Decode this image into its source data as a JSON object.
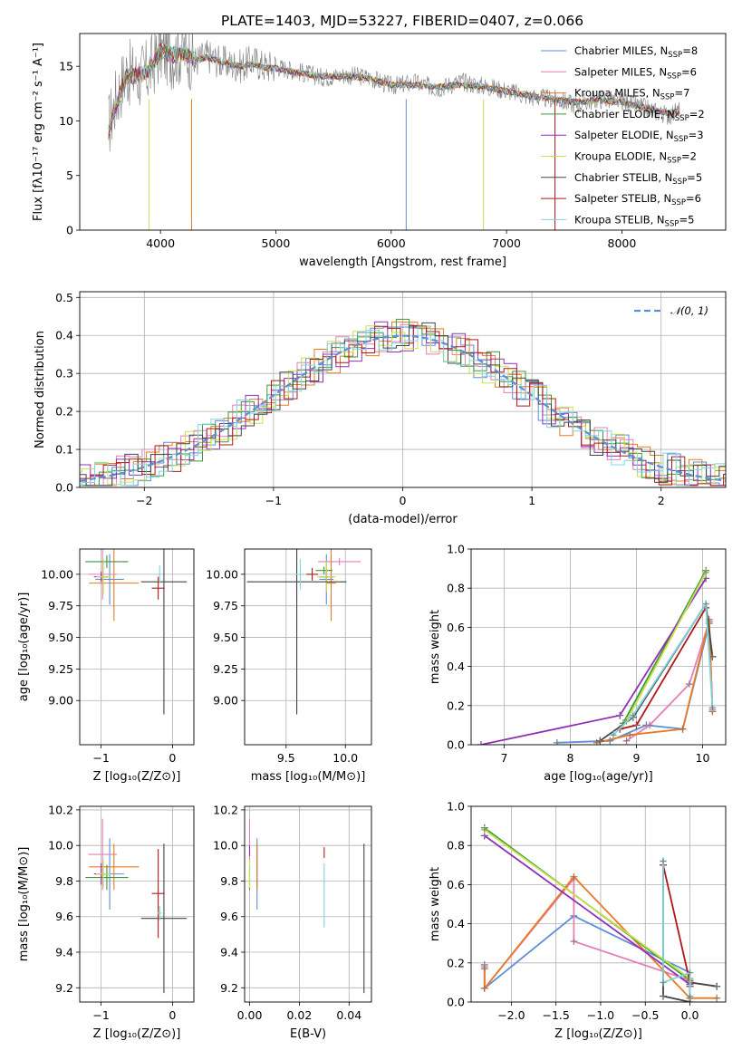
{
  "figure": {
    "title": "PLATE=1403, MJD=53227, FIBERID=0407, z=0.066"
  },
  "series_colors": {
    "Chabrier MILES": "#5b8fd8",
    "Salpeter MILES": "#e57fb8",
    "Kroupa MILES": "#e87a22",
    "Chabrier ELODIE": "#3a9a3a",
    "Salpeter ELODIE": "#9030b8",
    "Kroupa ELODIE": "#c8e04a",
    "Chabrier STELIB": "#444444",
    "Salpeter STELIB": "#b01818",
    "Kroupa STELIB": "#7fd4e0"
  },
  "chart_data": [
    {
      "id": "spectrum",
      "type": "line",
      "title": "PLATE=1403, MJD=53227, FIBERID=0407, z=0.066",
      "xlabel": "wavelength [Angstrom, rest frame]",
      "ylabel": "Flux [fλ10⁻¹⁷ erg cm⁻² s⁻¹ A⁻¹]",
      "xlim": [
        3300,
        8900
      ],
      "ylim": [
        0,
        18
      ],
      "xticks": [
        4000,
        5000,
        6000,
        7000,
        8000
      ],
      "yticks": [
        0,
        5,
        10,
        15
      ],
      "grid": false,
      "legend": "top-right",
      "data_color": "#808080",
      "data": {
        "x": [
          3550,
          3600,
          3700,
          3800,
          3900,
          4000,
          4100,
          4200,
          4300,
          4400,
          4500,
          4600,
          4700,
          4800,
          4900,
          5000,
          5200,
          5400,
          5600,
          5800,
          6000,
          6200,
          6400,
          6600,
          6800,
          7000,
          7200,
          7400,
          7600,
          7800,
          8000,
          8200,
          8400,
          8500
        ],
        "y": [
          9.5,
          11.5,
          14.5,
          14.0,
          14.5,
          16.5,
          16.0,
          16.5,
          15.5,
          16.0,
          15.5,
          15.2,
          15.0,
          15.5,
          15.0,
          15.0,
          14.5,
          14.0,
          14.2,
          14.0,
          13.2,
          13.5,
          13.0,
          13.6,
          13.2,
          12.8,
          12.2,
          12.0,
          11.5,
          12.0,
          11.8,
          11.2,
          10.5,
          11.0
        ]
      },
      "model": {
        "x": [
          3550,
          3600,
          3700,
          3800,
          3900,
          4000,
          4100,
          4200,
          4300,
          4400,
          4500,
          4600,
          4700,
          4800,
          4900,
          5000,
          5200,
          5400,
          5600,
          5800,
          6000,
          6200,
          6400,
          6600,
          6800,
          7000,
          7200,
          7400,
          7600,
          7800,
          8000,
          8200,
          8400,
          8500
        ],
        "y": [
          9.0,
          11.0,
          14.0,
          14.2,
          14.5,
          16.5,
          16.0,
          16.2,
          15.5,
          15.8,
          15.5,
          15.2,
          15.0,
          15.2,
          14.9,
          14.8,
          14.4,
          14.1,
          14.1,
          13.9,
          13.3,
          13.3,
          13.1,
          13.3,
          13.1,
          12.7,
          12.3,
          12.0,
          11.7,
          11.9,
          11.7,
          11.2,
          10.7,
          10.9
        ]
      },
      "legend_entries": [
        {
          "name": "Chabrier MILES",
          "n": "8"
        },
        {
          "name": "Salpeter MILES",
          "n": "6"
        },
        {
          "name": "Kroupa MILES",
          "n": "7"
        },
        {
          "name": "Chabrier ELODIE",
          "n": "2"
        },
        {
          "name": "Salpeter ELODIE",
          "n": "3"
        },
        {
          "name": "Kroupa ELODIE",
          "n": "2"
        },
        {
          "name": "Chabrier STELIB",
          "n": "5"
        },
        {
          "name": "Salpeter STELIB",
          "n": "6"
        },
        {
          "name": "Kroupa STELIB",
          "n": "5"
        }
      ],
      "legend_sub": "SSP"
    },
    {
      "id": "residuals",
      "type": "line",
      "xlabel": "(data-model)/error",
      "ylabel": "Normed distribution",
      "xlim": [
        -2.5,
        2.5
      ],
      "ylim": [
        0,
        0.515
      ],
      "xticks": [
        -2,
        -1,
        0,
        1,
        2
      ],
      "yticks": [
        0.0,
        0.1,
        0.2,
        0.3,
        0.4,
        0.5
      ],
      "grid": true,
      "legend": "top-right",
      "legend_label": "𝒩(0, 1)",
      "normal": {
        "mean": 0,
        "sigma": 1
      }
    },
    {
      "id": "age_vs_z",
      "type": "scatter",
      "xlabel": "Z [log₁₀(Z/Z⊙)]",
      "ylabel": "age  [log₁₀(age/yr)]",
      "xlim": [
        -1.3,
        0.3
      ],
      "ylim": [
        8.65,
        10.2
      ],
      "xticks": [
        -1,
        0
      ],
      "yticks": [
        9.0,
        9.25,
        9.5,
        9.75,
        10.0
      ],
      "grid": true,
      "points": [
        {
          "series": "Chabrier MILES",
          "x": -0.88,
          "y": 9.96,
          "xerr": 0.2,
          "yerr": 0.2
        },
        {
          "series": "Salpeter MILES",
          "x": -0.98,
          "y": 10.0,
          "xerr": 0.2,
          "yerr": 0.2
        },
        {
          "series": "Kroupa MILES",
          "x": -0.82,
          "y": 9.93,
          "xerr": 0.35,
          "yerr": 0.3
        },
        {
          "series": "Chabrier ELODIE",
          "x": -0.92,
          "y": 10.1,
          "xerr": 0.3,
          "yerr": 0.05
        },
        {
          "series": "Salpeter ELODIE",
          "x": -1.0,
          "y": 9.98,
          "xerr": 0.1,
          "yerr": 0.04
        },
        {
          "series": "Kroupa ELODIE",
          "x": -0.97,
          "y": 9.98,
          "xerr": 0.1,
          "yerr": 0.14
        },
        {
          "series": "Chabrier STELIB",
          "x": -0.12,
          "y": 9.94,
          "xerr": 0.32,
          "yerr": 1.05
        },
        {
          "series": "Salpeter STELIB",
          "x": -0.2,
          "y": 9.89,
          "xerr": 0.09,
          "yerr": 0.09
        },
        {
          "series": "Kroupa STELIB",
          "x": -0.18,
          "y": 10.0,
          "xerr": 0.03,
          "yerr": 0.07
        }
      ]
    },
    {
      "id": "age_vs_mass",
      "type": "scatter",
      "xlabel": "mass [log₁₀(M/M⊙)]",
      "xlim": [
        9.15,
        10.22
      ],
      "ylim": [
        8.65,
        10.2
      ],
      "xticks": [
        9.5,
        10.0
      ],
      "yticks": [
        9.0,
        9.25,
        9.5,
        9.75,
        10.0
      ],
      "grid": true,
      "points": [
        {
          "series": "Chabrier MILES",
          "x": 9.84,
          "y": 9.96,
          "yerr": 0.2,
          "xerr": 0.06
        },
        {
          "series": "Salpeter MILES",
          "x": 9.95,
          "y": 10.1,
          "yerr": 0.03,
          "xerr": 0.18
        },
        {
          "series": "Kroupa MILES",
          "x": 9.88,
          "y": 9.93,
          "yerr": 0.3,
          "xerr": 0.04
        },
        {
          "series": "Chabrier ELODIE",
          "x": 9.82,
          "y": 10.03,
          "yerr": 0.03,
          "xerr": 0.07
        },
        {
          "series": "Salpeter ELODIE",
          "x": 9.84,
          "y": 9.98,
          "yerr": 0.04,
          "xerr": 0.06
        },
        {
          "series": "Kroupa ELODIE",
          "x": 9.84,
          "y": 9.98,
          "yerr": 0.12,
          "xerr": 0.08
        },
        {
          "series": "Chabrier STELIB",
          "x": 9.59,
          "y": 9.94,
          "yerr": 1.05,
          "xerr": 0.42
        },
        {
          "series": "Salpeter STELIB",
          "x": 9.72,
          "y": 10.0,
          "yerr": 0.05,
          "xerr": 0.05
        },
        {
          "series": "Kroupa STELIB",
          "x": 9.62,
          "y": 10.0,
          "yerr": 0.12,
          "xerr": 0.04
        }
      ]
    },
    {
      "id": "weight_vs_age",
      "type": "line",
      "xlabel": "age  [log₁₀(age/yr)]",
      "ylabel": "mass weight",
      "xlim": [
        6.5,
        10.35
      ],
      "ylim": [
        0,
        1.0
      ],
      "xticks": [
        7,
        8,
        9,
        10
      ],
      "yticks": [
        0.0,
        0.2,
        0.4,
        0.6,
        0.8,
        1.0
      ],
      "grid": true,
      "series": [
        {
          "name": "Chabrier MILES",
          "x": [
            7.8,
            8.6,
            9.15,
            9.7,
            10.1,
            10.15
          ],
          "y": [
            0.01,
            0.02,
            0.1,
            0.08,
            0.62,
            0.17
          ]
        },
        {
          "name": "Salpeter MILES",
          "x": [
            8.85,
            9.2,
            9.8,
            10.1,
            10.15
          ],
          "y": [
            0.02,
            0.1,
            0.31,
            0.63,
            0.18
          ]
        },
        {
          "name": "Kroupa MILES",
          "x": [
            8.4,
            8.9,
            9.7,
            10.1,
            10.15
          ],
          "y": [
            0.01,
            0.05,
            0.08,
            0.64,
            0.17
          ]
        },
        {
          "name": "Chabrier ELODIE",
          "x": [
            8.8,
            10.05
          ],
          "y": [
            0.11,
            0.89
          ]
        },
        {
          "name": "Salpeter ELODIE",
          "x": [
            6.65,
            8.75,
            10.05
          ],
          "y": [
            0.0,
            0.15,
            0.85
          ]
        },
        {
          "name": "Kroupa ELODIE",
          "x": [
            8.85,
            10.05
          ],
          "y": [
            0.12,
            0.88
          ]
        },
        {
          "name": "Chabrier STELIB",
          "x": [
            8.45,
            8.95,
            10.05,
            10.15
          ],
          "y": [
            0.02,
            0.14,
            0.72,
            0.45
          ]
        },
        {
          "name": "Salpeter STELIB",
          "x": [
            8.75,
            9.0,
            10.05
          ],
          "y": [
            0.08,
            0.1,
            0.7
          ]
        },
        {
          "name": "Kroupa STELIB",
          "x": [
            8.65,
            8.95,
            10.05,
            10.15
          ],
          "y": [
            0.05,
            0.15,
            0.72,
            0.19
          ]
        }
      ]
    },
    {
      "id": "mass_vs_z",
      "type": "scatter",
      "xlabel": "Z [log₁₀(Z/Z⊙)]",
      "ylabel": "mass [log₁₀(M/M⊙)]",
      "xlim": [
        -1.3,
        0.3
      ],
      "ylim": [
        9.12,
        10.22
      ],
      "xticks": [
        -1,
        0
      ],
      "yticks": [
        9.2,
        9.4,
        9.6,
        9.8,
        10.0,
        10.2
      ],
      "grid": true,
      "points": [
        {
          "series": "Chabrier MILES",
          "x": -0.88,
          "y": 9.84,
          "xerr": 0.2,
          "yerr": 0.2
        },
        {
          "series": "Salpeter MILES",
          "x": -0.98,
          "y": 9.95,
          "xerr": 0.2,
          "yerr": 0.2
        },
        {
          "series": "Kroupa MILES",
          "x": -0.82,
          "y": 9.88,
          "xerr": 0.35,
          "yerr": 0.13
        },
        {
          "series": "Chabrier ELODIE",
          "x": -0.92,
          "y": 9.82,
          "xerr": 0.3,
          "yerr": 0.07
        },
        {
          "series": "Salpeter ELODIE",
          "x": -1.0,
          "y": 9.84,
          "xerr": 0.1,
          "yerr": 0.06
        },
        {
          "series": "Kroupa ELODIE",
          "x": -0.97,
          "y": 9.84,
          "xerr": 0.1,
          "yerr": 0.08
        },
        {
          "series": "Chabrier STELIB",
          "x": -0.12,
          "y": 9.59,
          "xerr": 0.32,
          "yerr": 0.42
        },
        {
          "series": "Salpeter STELIB",
          "x": -0.2,
          "y": 9.73,
          "xerr": 0.09,
          "yerr": 0.25
        },
        {
          "series": "Kroupa STELIB",
          "x": -0.18,
          "y": 9.62,
          "xerr": 0.03,
          "yerr": 0.04
        }
      ]
    },
    {
      "id": "mass_vs_ebv",
      "type": "scatter",
      "xlabel": "E(B-V)",
      "xlim": [
        -0.002,
        0.049
      ],
      "ylim": [
        9.12,
        10.22
      ],
      "xticks": [
        0.0,
        0.02,
        0.04
      ],
      "yticks": [
        9.2,
        9.4,
        9.6,
        9.8,
        10.0,
        10.2
      ],
      "grid": true,
      "points": [
        {
          "series": "Chabrier MILES",
          "x": 0.003,
          "y": 9.84,
          "yerr": 0.2
        },
        {
          "series": "Salpeter MILES",
          "x": 0.0,
          "y": 9.95,
          "yerr": 0.2
        },
        {
          "series": "Kroupa MILES",
          "x": 0.003,
          "y": 9.88,
          "yerr": 0.13
        },
        {
          "series": "Chabrier ELODIE",
          "x": 0.0,
          "y": 9.82,
          "yerr": 0.07
        },
        {
          "series": "Salpeter ELODIE",
          "x": 0.0,
          "y": 9.97,
          "yerr": 0.03
        },
        {
          "series": "Kroupa ELODIE",
          "x": 0.0,
          "y": 9.84,
          "yerr": 0.08
        },
        {
          "series": "Chabrier STELIB",
          "x": 0.046,
          "y": 9.59,
          "yerr": 0.42
        },
        {
          "series": "Salpeter STELIB",
          "x": 0.03,
          "y": 9.96,
          "yerr": 0.03
        },
        {
          "series": "Kroupa STELIB",
          "x": 0.03,
          "y": 9.72,
          "yerr": 0.18
        }
      ]
    },
    {
      "id": "weight_vs_z",
      "type": "line",
      "xlabel": "Z [log₁₀(Z/Z⊙)]",
      "ylabel": "mass weight",
      "xlim": [
        -2.45,
        0.4
      ],
      "ylim": [
        0,
        1.0
      ],
      "xticks": [
        -2.0,
        -1.5,
        -1.0,
        -0.5,
        0.0
      ],
      "yticks": [
        0.0,
        0.2,
        0.4,
        0.6,
        0.8,
        1.0
      ],
      "grid": true,
      "series": [
        {
          "name": "Chabrier MILES",
          "x": [
            -2.3,
            -2.3,
            -1.3,
            0.0,
            0.0
          ],
          "y": [
            0.19,
            0.07,
            0.44,
            0.15,
            0.02
          ]
        },
        {
          "name": "Salpeter MILES",
          "x": [
            -2.3,
            -2.3,
            -1.3,
            -1.3,
            0.0,
            0.0
          ],
          "y": [
            0.18,
            0.07,
            0.63,
            0.31,
            0.11,
            0.02
          ]
        },
        {
          "name": "Kroupa MILES",
          "x": [
            -2.3,
            -2.3,
            -1.3,
            0.0,
            0.0,
            0.3
          ],
          "y": [
            0.17,
            0.07,
            0.64,
            0.02,
            0.02,
            0.02
          ]
        },
        {
          "name": "Chabrier ELODIE",
          "x": [
            -2.3,
            0.0
          ],
          "y": [
            0.89,
            0.11
          ]
        },
        {
          "name": "Salpeter ELODIE",
          "x": [
            -2.3,
            0.0
          ],
          "y": [
            0.85,
            0.09
          ]
        },
        {
          "name": "Kroupa ELODIE",
          "x": [
            -2.3,
            0.0
          ],
          "y": [
            0.88,
            0.12
          ]
        },
        {
          "name": "Chabrier STELIB",
          "x": [
            -0.3,
            -0.3,
            0.0,
            0.0,
            0.3
          ],
          "y": [
            0.72,
            0.03,
            0.0,
            0.1,
            0.08
          ]
        },
        {
          "name": "Salpeter STELIB",
          "x": [
            -0.3,
            0.0,
            0.0
          ],
          "y": [
            0.7,
            0.1,
            0.08
          ]
        },
        {
          "name": "Kroupa STELIB",
          "x": [
            -0.3,
            -0.3,
            0.0,
            0.0
          ],
          "y": [
            0.72,
            0.1,
            0.15,
            0.03
          ]
        }
      ]
    }
  ]
}
